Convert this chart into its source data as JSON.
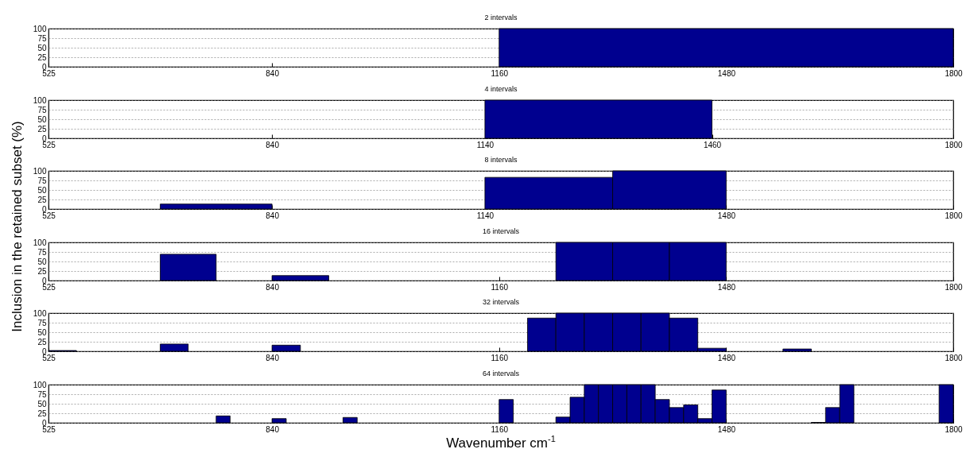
{
  "chart_data": [
    {
      "type": "histogram",
      "title": "2 intervals",
      "ylabel": "Inclusion in the retained subset (%)",
      "color": "#00008f",
      "bins": [
        1160,
        1800
      ],
      "values": [
        100
      ],
      "xlim": [
        525,
        1800
      ],
      "ylim": [
        0,
        100
      ],
      "xticks": [
        525,
        840,
        1160,
        1480,
        1800
      ],
      "yticks": [
        0,
        25,
        50,
        75,
        100
      ],
      "grid": "y"
    },
    {
      "type": "histogram",
      "title": "4 intervals",
      "color": "#00008f",
      "bins": [
        1140,
        1460
      ],
      "values": [
        100
      ],
      "xlim": [
        525,
        1800
      ],
      "ylim": [
        0,
        100
      ],
      "xticks": [
        525,
        840,
        1140,
        1460,
        1800
      ],
      "yticks": [
        0,
        25,
        50,
        75,
        100
      ],
      "grid": "y"
    },
    {
      "type": "histogram",
      "title": "8 intervals",
      "color": "#00008f",
      "bins": [
        682.5,
        840,
        1140,
        1320,
        1480
      ],
      "values": [
        13,
        0,
        83,
        100
      ],
      "xlim": [
        525,
        1800
      ],
      "ylim": [
        0,
        100
      ],
      "xticks": [
        525,
        840,
        1140,
        1480,
        1800
      ],
      "yticks": [
        0,
        25,
        50,
        75,
        100
      ],
      "grid": "y"
    },
    {
      "type": "histogram",
      "title": "16 intervals",
      "color": "#00008f",
      "bins": [
        682.5,
        761.25,
        840,
        920,
        1240,
        1320,
        1400,
        1480
      ],
      "values": [
        69,
        0,
        13,
        0,
        100,
        100,
        100
      ],
      "xlim": [
        525,
        1800
      ],
      "ylim": [
        0,
        100
      ],
      "xticks": [
        525,
        840,
        1160,
        1480,
        1800
      ],
      "yticks": [
        0,
        25,
        50,
        75,
        100
      ],
      "grid": "y"
    },
    {
      "type": "histogram",
      "title": "32 intervals",
      "color": "#00008f",
      "bins": [
        525,
        564.375,
        682.5,
        721.875,
        840,
        880,
        1200,
        1240,
        1280,
        1320,
        1360,
        1400,
        1440,
        1480,
        1560,
        1600
      ],
      "values": [
        2,
        0,
        19,
        0,
        16,
        0,
        87,
        100,
        100,
        100,
        100,
        87,
        8,
        0,
        6
      ],
      "xlim": [
        525,
        1800
      ],
      "ylim": [
        0,
        100
      ],
      "xticks": [
        525,
        840,
        1160,
        1480,
        1800
      ],
      "yticks": [
        0,
        25,
        50,
        75,
        100
      ],
      "grid": "y"
    },
    {
      "type": "histogram",
      "title": "64 intervals",
      "xlabel": "Wavenumber cm$^{-1}$",
      "color": "#00008f",
      "bins": [
        761.25,
        780.9375,
        840,
        860,
        940,
        960,
        1160,
        1180,
        1240,
        1260,
        1280,
        1300,
        1320,
        1340,
        1360,
        1380,
        1400,
        1420,
        1440,
        1460,
        1480,
        1600,
        1620,
        1640,
        1660,
        1780,
        1800
      ],
      "values": [
        18,
        0,
        11,
        0,
        14,
        0,
        61,
        0,
        15,
        67,
        100,
        100,
        100,
        100,
        100,
        61,
        40,
        47,
        11,
        86,
        0,
        1,
        40,
        100,
        0,
        100
      ],
      "xlim": [
        525,
        1800
      ],
      "ylim": [
        0,
        100
      ],
      "xticks": [
        525,
        840,
        1160,
        1480,
        1800
      ],
      "yticks": [
        0,
        25,
        50,
        75,
        100
      ],
      "grid": "y"
    }
  ]
}
